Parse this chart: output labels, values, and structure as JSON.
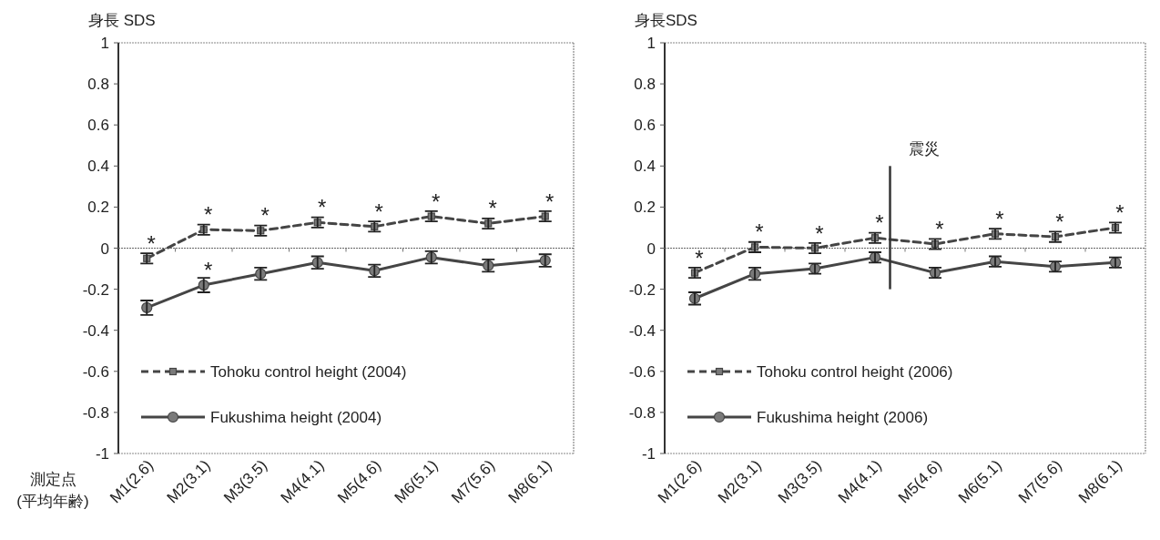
{
  "chart_data": [
    {
      "type": "line",
      "ylabel": "身長 SDS",
      "xlabel": "測定点\n(平均年齢)",
      "categories": [
        "M1(2.6)",
        "M2(3.1)",
        "M3(3.5)",
        "M4(4.1)",
        "M5(4.6)",
        "M6(5.1)",
        "M7(5.6)",
        "M8(6.1)"
      ],
      "ylim": [
        -1,
        1
      ],
      "yticks": [
        -1,
        -0.8,
        -0.6,
        -0.4,
        -0.2,
        0,
        0.2,
        0.4,
        0.6,
        0.8,
        1
      ],
      "legend": "bottom left",
      "series": [
        {
          "name": "Tohoku control height (2004)",
          "color": "#454545",
          "marker": "square",
          "line_style": "dashed",
          "values": [
            -0.05,
            0.09,
            0.085,
            0.125,
            0.105,
            0.155,
            0.12,
            0.155
          ],
          "errors": [
            0.025,
            0.025,
            0.025,
            0.025,
            0.025,
            0.025,
            0.025,
            0.025
          ]
        },
        {
          "name": "Fukushima height (2004)",
          "color": "#454545",
          "marker": "circle",
          "line_style": "solid",
          "values": [
            -0.29,
            -0.18,
            -0.125,
            -0.07,
            -0.11,
            -0.045,
            -0.085,
            -0.06
          ],
          "errors": [
            0.035,
            0.035,
            0.03,
            0.03,
            0.03,
            0.03,
            0.03,
            0.03
          ]
        }
      ],
      "annotations": [
        {
          "text": "*",
          "x": "M1(2.6)",
          "y": -0.05
        },
        {
          "text": "*",
          "x": "M2(3.1)",
          "y": 0.09
        },
        {
          "text": "*",
          "x": "M3(3.5)",
          "y": 0.085
        },
        {
          "text": "*",
          "x": "M4(4.1)",
          "y": 0.125
        },
        {
          "text": "*",
          "x": "M5(4.6)",
          "y": 0.105
        },
        {
          "text": "*",
          "x": "M6(5.1)",
          "y": 0.155
        },
        {
          "text": "*",
          "x": "M7(5.6)",
          "y": 0.12
        },
        {
          "text": "*",
          "x": "M8(6.1)",
          "y": 0.155
        },
        {
          "text": "*",
          "x": "M2(3.1)",
          "y": -0.18
        }
      ]
    },
    {
      "type": "line",
      "ylabel": "身長SDS",
      "categories": [
        "M1(2.6)",
        "M2(3.1)",
        "M3(3.5)",
        "M4(4.1)",
        "M5(4.6)",
        "M6(5.1)",
        "M7(5.6)",
        "M8(6.1)"
      ],
      "ylim": [
        -1,
        1
      ],
      "yticks": [
        -1,
        -0.8,
        -0.6,
        -0.4,
        -0.2,
        0,
        0.2,
        0.4,
        0.6,
        0.8,
        1
      ],
      "legend": "bottom left",
      "series": [
        {
          "name": "Tohoku control height (2006)",
          "color": "#454545",
          "marker": "square",
          "line_style": "dashed",
          "values": [
            -0.12,
            0.005,
            0.0,
            0.05,
            0.02,
            0.07,
            0.055,
            0.1
          ],
          "errors": [
            0.025,
            0.025,
            0.025,
            0.025,
            0.025,
            0.025,
            0.025,
            0.025
          ]
        },
        {
          "name": "Fukushima height (2006)",
          "color": "#454545",
          "marker": "circle",
          "line_style": "solid",
          "values": [
            -0.245,
            -0.125,
            -0.1,
            -0.045,
            -0.12,
            -0.065,
            -0.09,
            -0.07
          ],
          "errors": [
            0.03,
            0.03,
            0.025,
            0.025,
            0.025,
            0.025,
            0.025,
            0.025
          ]
        }
      ],
      "annotations": [
        "震災",
        {
          "text": "*",
          "x": "M1(2.6)",
          "y": -0.12
        },
        {
          "text": "*",
          "x": "M2(3.1)",
          "y": 0.005
        },
        {
          "text": "*",
          "x": "M3(3.5)",
          "y": 0.0
        },
        {
          "text": "*",
          "x": "M4(4.1)",
          "y": 0.05
        },
        {
          "text": "*",
          "x": "M5(4.6)",
          "y": 0.02
        },
        {
          "text": "*",
          "x": "M6(5.1)",
          "y": 0.07
        },
        {
          "text": "*",
          "x": "M7(5.6)",
          "y": 0.055
        },
        {
          "text": "*",
          "x": "M8(6.1)",
          "y": 0.1
        }
      ]
    }
  ]
}
